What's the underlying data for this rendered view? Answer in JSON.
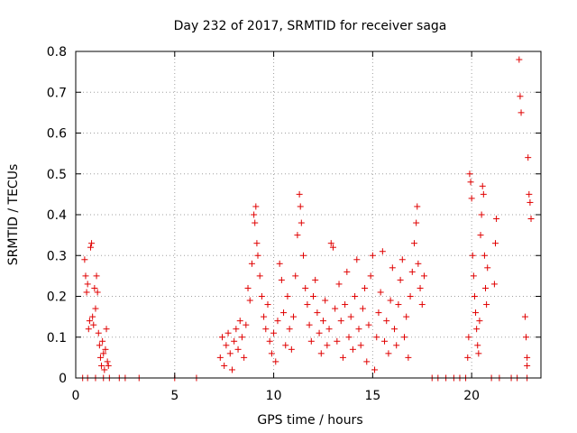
{
  "chart_data": {
    "type": "scatter",
    "title": "Day 232 of 2017, SRMTID for receiver saga",
    "xlabel": "GPS time / hours",
    "ylabel": "SRMTID / TECUs",
    "xlim": [
      0,
      23.5
    ],
    "ylim": [
      0,
      0.8
    ],
    "xticks": [
      0,
      5,
      10,
      15,
      20
    ],
    "xtick_labels": [
      "0",
      "5",
      "10",
      "15",
      "20"
    ],
    "yticks": [
      0,
      0.1,
      0.2,
      0.3,
      0.4,
      0.5,
      0.6,
      0.7,
      0.8
    ],
    "ytick_labels": [
      "0",
      "0.1",
      "0.2",
      "0.3",
      "0.4",
      "0.5",
      "0.6",
      "0.7",
      "0.8"
    ],
    "grid": true,
    "marker": "plus",
    "color": "#e00000",
    "series": [
      {
        "name": "SRMTID",
        "points": [
          [
            0.45,
            0.29
          ],
          [
            0.5,
            0.25
          ],
          [
            0.55,
            0.21
          ],
          [
            0.6,
            0.23
          ],
          [
            0.65,
            0.12
          ],
          [
            0.7,
            0.14
          ],
          [
            0.75,
            0.32
          ],
          [
            0.8,
            0.33
          ],
          [
            0.85,
            0.15
          ],
          [
            0.9,
            0.13
          ],
          [
            0.95,
            0.22
          ],
          [
            1.0,
            0.17
          ],
          [
            1.05,
            0.25
          ],
          [
            1.1,
            0.21
          ],
          [
            1.15,
            0.11
          ],
          [
            1.2,
            0.08
          ],
          [
            1.25,
            0.05
          ],
          [
            1.3,
            0.03
          ],
          [
            1.35,
            0.09
          ],
          [
            1.4,
            0.06
          ],
          [
            1.45,
            0.02
          ],
          [
            1.5,
            0.07
          ],
          [
            1.55,
            0.12
          ],
          [
            1.6,
            0.04
          ],
          [
            1.65,
            0.03
          ],
          [
            0.35,
            0.0
          ],
          [
            0.6,
            0.0
          ],
          [
            1.0,
            0.0
          ],
          [
            1.4,
            0.0
          ],
          [
            1.7,
            0.0
          ],
          [
            2.2,
            0.0
          ],
          [
            2.5,
            0.0
          ],
          [
            3.2,
            0.0
          ],
          [
            5.0,
            0.0
          ],
          [
            6.1,
            0.0
          ],
          [
            7.3,
            0.05
          ],
          [
            7.4,
            0.1
          ],
          [
            7.5,
            0.03
          ],
          [
            7.6,
            0.08
          ],
          [
            7.7,
            0.11
          ],
          [
            7.8,
            0.06
          ],
          [
            7.9,
            0.02
          ],
          [
            8.0,
            0.09
          ],
          [
            8.1,
            0.12
          ],
          [
            8.2,
            0.07
          ],
          [
            8.3,
            0.14
          ],
          [
            8.4,
            0.1
          ],
          [
            8.5,
            0.05
          ],
          [
            8.6,
            0.13
          ],
          [
            8.7,
            0.22
          ],
          [
            8.8,
            0.19
          ],
          [
            8.9,
            0.28
          ],
          [
            9.0,
            0.4
          ],
          [
            9.05,
            0.38
          ],
          [
            9.1,
            0.42
          ],
          [
            9.15,
            0.33
          ],
          [
            9.2,
            0.3
          ],
          [
            9.3,
            0.25
          ],
          [
            9.4,
            0.2
          ],
          [
            9.5,
            0.15
          ],
          [
            9.6,
            0.12
          ],
          [
            9.7,
            0.18
          ],
          [
            9.8,
            0.09
          ],
          [
            9.9,
            0.06
          ],
          [
            10.0,
            0.11
          ],
          [
            10.1,
            0.04
          ],
          [
            10.2,
            0.14
          ],
          [
            10.3,
            0.28
          ],
          [
            10.4,
            0.24
          ],
          [
            10.5,
            0.16
          ],
          [
            10.6,
            0.08
          ],
          [
            10.7,
            0.2
          ],
          [
            10.8,
            0.12
          ],
          [
            10.9,
            0.07
          ],
          [
            11.0,
            0.15
          ],
          [
            11.1,
            0.25
          ],
          [
            11.2,
            0.35
          ],
          [
            11.3,
            0.45
          ],
          [
            11.35,
            0.42
          ],
          [
            11.4,
            0.38
          ],
          [
            11.5,
            0.3
          ],
          [
            11.6,
            0.22
          ],
          [
            11.7,
            0.18
          ],
          [
            11.8,
            0.13
          ],
          [
            11.9,
            0.09
          ],
          [
            12.0,
            0.2
          ],
          [
            12.1,
            0.24
          ],
          [
            12.2,
            0.16
          ],
          [
            12.3,
            0.11
          ],
          [
            12.4,
            0.06
          ],
          [
            12.5,
            0.14
          ],
          [
            12.6,
            0.19
          ],
          [
            12.7,
            0.08
          ],
          [
            12.8,
            0.12
          ],
          [
            12.9,
            0.33
          ],
          [
            13.0,
            0.32
          ],
          [
            13.1,
            0.17
          ],
          [
            13.2,
            0.09
          ],
          [
            13.3,
            0.23
          ],
          [
            13.4,
            0.14
          ],
          [
            13.5,
            0.05
          ],
          [
            13.6,
            0.18
          ],
          [
            13.7,
            0.26
          ],
          [
            13.8,
            0.1
          ],
          [
            13.9,
            0.15
          ],
          [
            14.0,
            0.07
          ],
          [
            14.1,
            0.2
          ],
          [
            14.2,
            0.29
          ],
          [
            14.3,
            0.12
          ],
          [
            14.4,
            0.08
          ],
          [
            14.5,
            0.17
          ],
          [
            14.6,
            0.22
          ],
          [
            14.7,
            0.04
          ],
          [
            14.8,
            0.13
          ],
          [
            14.9,
            0.25
          ],
          [
            15.0,
            0.3
          ],
          [
            15.1,
            0.02
          ],
          [
            15.2,
            0.1
          ],
          [
            15.3,
            0.16
          ],
          [
            15.4,
            0.21
          ],
          [
            15.5,
            0.31
          ],
          [
            15.6,
            0.09
          ],
          [
            15.7,
            0.14
          ],
          [
            15.8,
            0.06
          ],
          [
            15.9,
            0.19
          ],
          [
            16.0,
            0.27
          ],
          [
            16.1,
            0.12
          ],
          [
            16.2,
            0.08
          ],
          [
            16.3,
            0.18
          ],
          [
            16.4,
            0.24
          ],
          [
            16.5,
            0.29
          ],
          [
            16.6,
            0.1
          ],
          [
            16.7,
            0.15
          ],
          [
            16.8,
            0.05
          ],
          [
            16.9,
            0.2
          ],
          [
            17.0,
            0.26
          ],
          [
            17.1,
            0.33
          ],
          [
            17.2,
            0.38
          ],
          [
            17.25,
            0.42
          ],
          [
            17.3,
            0.28
          ],
          [
            17.4,
            0.22
          ],
          [
            17.5,
            0.18
          ],
          [
            17.6,
            0.25
          ],
          [
            18.0,
            0.0
          ],
          [
            18.3,
            0.0
          ],
          [
            18.7,
            0.0
          ],
          [
            19.1,
            0.0
          ],
          [
            19.4,
            0.0
          ],
          [
            19.7,
            0.0
          ],
          [
            21.0,
            0.0
          ],
          [
            21.4,
            0.0
          ],
          [
            22.0,
            0.0
          ],
          [
            22.3,
            0.0
          ],
          [
            22.8,
            0.0
          ],
          [
            19.8,
            0.05
          ],
          [
            19.85,
            0.1
          ],
          [
            19.9,
            0.5
          ],
          [
            19.95,
            0.48
          ],
          [
            20.0,
            0.44
          ],
          [
            20.05,
            0.3
          ],
          [
            20.1,
            0.25
          ],
          [
            20.15,
            0.2
          ],
          [
            20.2,
            0.16
          ],
          [
            20.25,
            0.12
          ],
          [
            20.3,
            0.08
          ],
          [
            20.35,
            0.06
          ],
          [
            20.4,
            0.14
          ],
          [
            20.45,
            0.35
          ],
          [
            20.5,
            0.4
          ],
          [
            20.55,
            0.47
          ],
          [
            20.6,
            0.45
          ],
          [
            20.65,
            0.3
          ],
          [
            20.7,
            0.22
          ],
          [
            20.75,
            0.18
          ],
          [
            20.8,
            0.27
          ],
          [
            21.15,
            0.23
          ],
          [
            21.2,
            0.33
          ],
          [
            21.25,
            0.39
          ],
          [
            22.4,
            0.78
          ],
          [
            22.45,
            0.69
          ],
          [
            22.5,
            0.65
          ],
          [
            22.7,
            0.15
          ],
          [
            22.75,
            0.1
          ],
          [
            22.8,
            0.05
          ],
          [
            22.85,
            0.54
          ],
          [
            22.9,
            0.45
          ],
          [
            22.95,
            0.43
          ],
          [
            23.0,
            0.39
          ],
          [
            22.8,
            0.03
          ]
        ]
      }
    ]
  }
}
